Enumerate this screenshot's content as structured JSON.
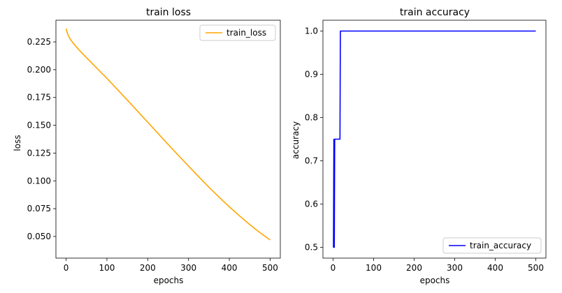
{
  "chart_data": [
    {
      "type": "line",
      "title": "train loss",
      "xlabel": "epochs",
      "ylabel": "loss",
      "xlim": [
        -25,
        525
      ],
      "ylim": [
        0.0305,
        0.2445
      ],
      "xticks": [
        0,
        100,
        200,
        300,
        400,
        500
      ],
      "yticks": [
        0.05,
        0.075,
        0.1,
        0.125,
        0.15,
        0.175,
        0.2,
        0.225
      ],
      "ytick_labels": [
        "0.050",
        "0.075",
        "0.100",
        "0.125",
        "0.150",
        "0.175",
        "0.200",
        "0.225"
      ],
      "grid": false,
      "legend_position": "upper right",
      "series": [
        {
          "name": "train_loss",
          "color": "#ffa500",
          "x": [
            0,
            2,
            5,
            10,
            15,
            20,
            30,
            40,
            50,
            75,
            100,
            125,
            150,
            175,
            200,
            225,
            250,
            275,
            300,
            325,
            350,
            375,
            400,
            425,
            450,
            475,
            500
          ],
          "y": [
            0.237,
            0.234,
            0.231,
            0.2275,
            0.225,
            0.2228,
            0.2185,
            0.2145,
            0.2108,
            0.2015,
            0.1922,
            0.1825,
            0.1727,
            0.1627,
            0.1528,
            0.1428,
            0.1328,
            0.123,
            0.1133,
            0.1037,
            0.0943,
            0.0853,
            0.0767,
            0.0685,
            0.0607,
            0.0535,
            0.0468
          ]
        }
      ]
    },
    {
      "type": "line",
      "title": "train accuracy",
      "xlabel": "epochs",
      "ylabel": "accuracy",
      "xlim": [
        -25,
        525
      ],
      "ylim": [
        0.475,
        1.025
      ],
      "xticks": [
        0,
        100,
        200,
        300,
        400,
        500
      ],
      "yticks": [
        0.5,
        0.6,
        0.7,
        0.8,
        0.9,
        1.0
      ],
      "ytick_labels": [
        "0.5",
        "0.6",
        "0.7",
        "0.8",
        "0.9",
        "1.0"
      ],
      "grid": false,
      "legend_position": "lower right",
      "series": [
        {
          "name": "train_accuracy",
          "color": "#0000ff",
          "x": [
            0,
            1,
            2,
            3,
            4,
            5,
            6,
            17,
            18,
            500
          ],
          "y": [
            0.5,
            0.5,
            0.75,
            0.5,
            0.75,
            0.75,
            0.75,
            0.75,
            1.0,
            1.0
          ]
        }
      ]
    }
  ]
}
